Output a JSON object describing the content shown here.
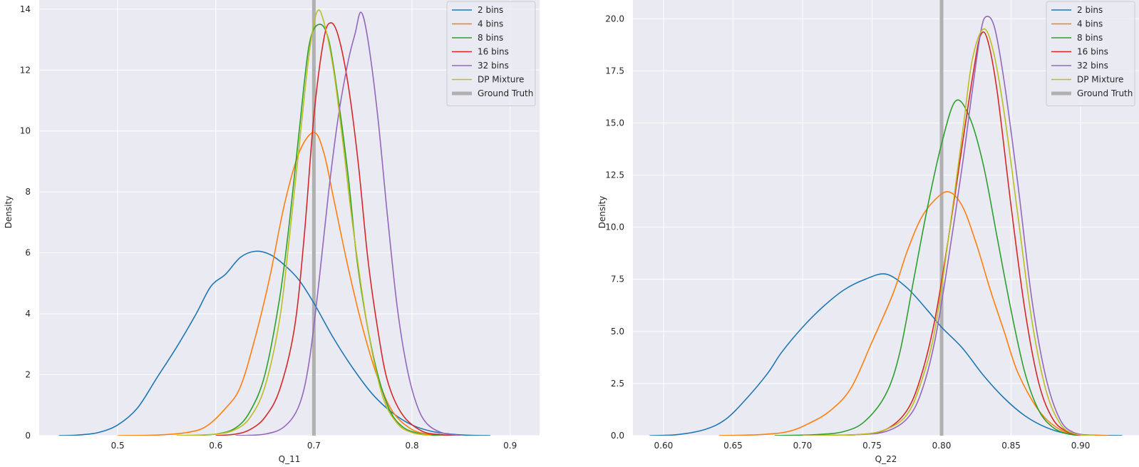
{
  "colors": {
    "plot_background": "#eaeaf2",
    "grid": "#ffffff",
    "text": "#262626",
    "ground_truth": "#b0b0b0"
  },
  "chart_data": [
    {
      "type": "line",
      "xlabel": "Q_11",
      "ylabel": "Density",
      "xlim": [
        0.42,
        0.93
      ],
      "ylim": [
        0,
        14.3
      ],
      "xticks": [
        0.5,
        0.6,
        0.7,
        0.8,
        0.9
      ],
      "xtick_labels": [
        "0.5",
        "0.6",
        "0.7",
        "0.8",
        "0.9"
      ],
      "yticks": [
        0,
        2,
        4,
        6,
        8,
        10,
        12,
        14
      ],
      "ytick_labels": [
        "0",
        "2",
        "4",
        "6",
        "8",
        "10",
        "12",
        "14"
      ],
      "grid": true,
      "legend_position": "top-right",
      "ground_truth": {
        "name": "Ground Truth",
        "x": 0.7,
        "color": "#b0b0b0"
      },
      "series": [
        {
          "name": "2 bins",
          "color": "#1f77b4",
          "points": [
            [
              0.44,
              0
            ],
            [
              0.46,
              0.02
            ],
            [
              0.48,
              0.1
            ],
            [
              0.5,
              0.35
            ],
            [
              0.52,
              0.9
            ],
            [
              0.54,
              1.9
            ],
            [
              0.56,
              2.9
            ],
            [
              0.58,
              4.0
            ],
            [
              0.595,
              4.9
            ],
            [
              0.61,
              5.3
            ],
            [
              0.625,
              5.85
            ],
            [
              0.64,
              6.05
            ],
            [
              0.655,
              5.95
            ],
            [
              0.67,
              5.6
            ],
            [
              0.685,
              5.1
            ],
            [
              0.7,
              4.35
            ],
            [
              0.72,
              3.2
            ],
            [
              0.74,
              2.2
            ],
            [
              0.76,
              1.35
            ],
            [
              0.78,
              0.75
            ],
            [
              0.8,
              0.35
            ],
            [
              0.82,
              0.14
            ],
            [
              0.84,
              0.05
            ],
            [
              0.86,
              0.01
            ],
            [
              0.88,
              0
            ]
          ]
        },
        {
          "name": "4 bins",
          "color": "#ff7f0e",
          "points": [
            [
              0.5,
              0
            ],
            [
              0.54,
              0.02
            ],
            [
              0.57,
              0.1
            ],
            [
              0.59,
              0.3
            ],
            [
              0.61,
              0.9
            ],
            [
              0.625,
              1.6
            ],
            [
              0.64,
              3.2
            ],
            [
              0.655,
              5.2
            ],
            [
              0.67,
              7.6
            ],
            [
              0.685,
              9.3
            ],
            [
              0.7,
              9.95
            ],
            [
              0.71,
              9.3
            ],
            [
              0.72,
              7.8
            ],
            [
              0.735,
              5.5
            ],
            [
              0.75,
              3.5
            ],
            [
              0.765,
              1.9
            ],
            [
              0.78,
              0.8
            ],
            [
              0.8,
              0.2
            ],
            [
              0.82,
              0.04
            ],
            [
              0.84,
              0
            ]
          ]
        },
        {
          "name": "8 bins",
          "color": "#2ca02c",
          "points": [
            [
              0.57,
              0
            ],
            [
              0.6,
              0.05
            ],
            [
              0.62,
              0.25
            ],
            [
              0.635,
              0.8
            ],
            [
              0.65,
              2.0
            ],
            [
              0.665,
              4.5
            ],
            [
              0.675,
              7.0
            ],
            [
              0.685,
              10.0
            ],
            [
              0.695,
              12.8
            ],
            [
              0.705,
              13.5
            ],
            [
              0.715,
              13.0
            ],
            [
              0.725,
              11.0
            ],
            [
              0.735,
              8.5
            ],
            [
              0.745,
              5.5
            ],
            [
              0.76,
              2.7
            ],
            [
              0.775,
              1.0
            ],
            [
              0.79,
              0.3
            ],
            [
              0.81,
              0.05
            ],
            [
              0.83,
              0
            ]
          ]
        },
        {
          "name": "16 bins",
          "color": "#d62728",
          "points": [
            [
              0.6,
              0
            ],
            [
              0.62,
              0.05
            ],
            [
              0.635,
              0.2
            ],
            [
              0.65,
              0.6
            ],
            [
              0.665,
              1.5
            ],
            [
              0.68,
              3.5
            ],
            [
              0.69,
              6.5
            ],
            [
              0.7,
              10.5
            ],
            [
              0.71,
              13.0
            ],
            [
              0.717,
              13.55
            ],
            [
              0.725,
              13.1
            ],
            [
              0.735,
              11.5
            ],
            [
              0.745,
              9.0
            ],
            [
              0.755,
              5.8
            ],
            [
              0.765,
              3.5
            ],
            [
              0.775,
              1.8
            ],
            [
              0.79,
              0.7
            ],
            [
              0.81,
              0.15
            ],
            [
              0.83,
              0.03
            ],
            [
              0.85,
              0
            ]
          ]
        },
        {
          "name": "32 bins",
          "color": "#9467bd",
          "points": [
            [
              0.62,
              0
            ],
            [
              0.65,
              0.05
            ],
            [
              0.67,
              0.3
            ],
            [
              0.685,
              1.0
            ],
            [
              0.695,
              2.4
            ],
            [
              0.705,
              5.0
            ],
            [
              0.715,
              8.0
            ],
            [
              0.725,
              10.5
            ],
            [
              0.735,
              12.3
            ],
            [
              0.742,
              13.2
            ],
            [
              0.748,
              13.9
            ],
            [
              0.755,
              13.0
            ],
            [
              0.765,
              10.5
            ],
            [
              0.775,
              7.2
            ],
            [
              0.785,
              4.2
            ],
            [
              0.795,
              2.2
            ],
            [
              0.805,
              1.0
            ],
            [
              0.815,
              0.4
            ],
            [
              0.83,
              0.1
            ],
            [
              0.85,
              0
            ]
          ]
        },
        {
          "name": "DP Mixture",
          "color": "#bcbd22",
          "points": [
            [
              0.56,
              0
            ],
            [
              0.6,
              0.05
            ],
            [
              0.62,
              0.2
            ],
            [
              0.635,
              0.6
            ],
            [
              0.65,
              1.6
            ],
            [
              0.665,
              3.8
            ],
            [
              0.675,
              6.5
            ],
            [
              0.685,
              9.5
            ],
            [
              0.695,
              12.5
            ],
            [
              0.703,
              13.9
            ],
            [
              0.71,
              13.6
            ],
            [
              0.72,
              12.0
            ],
            [
              0.73,
              9.5
            ],
            [
              0.74,
              6.8
            ],
            [
              0.755,
              3.5
            ],
            [
              0.77,
              1.3
            ],
            [
              0.785,
              0.4
            ],
            [
              0.8,
              0.1
            ],
            [
              0.82,
              0
            ]
          ]
        }
      ]
    },
    {
      "type": "line",
      "xlabel": "Q_22",
      "ylabel": "Density",
      "xlim": [
        0.578,
        0.942
      ],
      "ylim": [
        0,
        20.9
      ],
      "xticks": [
        0.6,
        0.65,
        0.7,
        0.75,
        0.8,
        0.85,
        0.9
      ],
      "xtick_labels": [
        "0.60",
        "0.65",
        "0.70",
        "0.75",
        "0.80",
        "0.85",
        "0.90"
      ],
      "yticks": [
        0,
        2.5,
        5,
        7.5,
        10,
        12.5,
        15,
        17.5,
        20
      ],
      "ytick_labels": [
        "0.0",
        "2.5",
        "5.0",
        "7.5",
        "10.0",
        "12.5",
        "15.0",
        "17.5",
        "20.0"
      ],
      "grid": true,
      "legend_position": "top-right",
      "ground_truth": {
        "name": "Ground Truth",
        "x": 0.8,
        "color": "#b0b0b0"
      },
      "series": [
        {
          "name": "2 bins",
          "color": "#1f77b4",
          "points": [
            [
              0.59,
              0
            ],
            [
              0.61,
              0.05
            ],
            [
              0.63,
              0.3
            ],
            [
              0.645,
              0.8
            ],
            [
              0.66,
              1.8
            ],
            [
              0.675,
              3.0
            ],
            [
              0.685,
              4.0
            ],
            [
              0.7,
              5.2
            ],
            [
              0.715,
              6.2
            ],
            [
              0.73,
              7.0
            ],
            [
              0.745,
              7.5
            ],
            [
              0.76,
              7.75
            ],
            [
              0.775,
              7.1
            ],
            [
              0.79,
              6.0
            ],
            [
              0.8,
              5.2
            ],
            [
              0.815,
              4.2
            ],
            [
              0.83,
              2.9
            ],
            [
              0.845,
              1.8
            ],
            [
              0.86,
              0.95
            ],
            [
              0.875,
              0.4
            ],
            [
              0.89,
              0.1
            ],
            [
              0.91,
              0.02
            ],
            [
              0.93,
              0
            ]
          ]
        },
        {
          "name": "4 bins",
          "color": "#ff7f0e",
          "points": [
            [
              0.64,
              0
            ],
            [
              0.67,
              0.05
            ],
            [
              0.69,
              0.2
            ],
            [
              0.705,
              0.6
            ],
            [
              0.72,
              1.2
            ],
            [
              0.735,
              2.3
            ],
            [
              0.75,
              4.5
            ],
            [
              0.765,
              6.8
            ],
            [
              0.775,
              8.8
            ],
            [
              0.785,
              10.4
            ],
            [
              0.795,
              11.3
            ],
            [
              0.805,
              11.7
            ],
            [
              0.815,
              11.0
            ],
            [
              0.825,
              9.2
            ],
            [
              0.835,
              7.0
            ],
            [
              0.845,
              5.0
            ],
            [
              0.855,
              3.0
            ],
            [
              0.87,
              1.2
            ],
            [
              0.885,
              0.3
            ],
            [
              0.9,
              0.05
            ],
            [
              0.92,
              0
            ]
          ]
        },
        {
          "name": "8 bins",
          "color": "#2ca02c",
          "points": [
            [
              0.68,
              0
            ],
            [
              0.71,
              0.05
            ],
            [
              0.73,
              0.2
            ],
            [
              0.745,
              0.7
            ],
            [
              0.76,
              2.0
            ],
            [
              0.77,
              4.0
            ],
            [
              0.78,
              7.5
            ],
            [
              0.79,
              11.0
            ],
            [
              0.8,
              14.0
            ],
            [
              0.81,
              16.05
            ],
            [
              0.82,
              15.3
            ],
            [
              0.83,
              13.0
            ],
            [
              0.84,
              9.5
            ],
            [
              0.85,
              6.0
            ],
            [
              0.86,
              3.0
            ],
            [
              0.87,
              1.2
            ],
            [
              0.88,
              0.4
            ],
            [
              0.89,
              0.1
            ],
            [
              0.9,
              0
            ]
          ]
        },
        {
          "name": "16 bins",
          "color": "#d62728",
          "points": [
            [
              0.7,
              0
            ],
            [
              0.74,
              0.05
            ],
            [
              0.76,
              0.3
            ],
            [
              0.775,
              1.2
            ],
            [
              0.785,
              2.8
            ],
            [
              0.795,
              5.5
            ],
            [
              0.805,
              9.5
            ],
            [
              0.815,
              14.0
            ],
            [
              0.823,
              17.5
            ],
            [
              0.828,
              19.2
            ],
            [
              0.833,
              19.0
            ],
            [
              0.84,
              16.5
            ],
            [
              0.85,
              11.0
            ],
            [
              0.86,
              6.0
            ],
            [
              0.87,
              2.5
            ],
            [
              0.88,
              0.8
            ],
            [
              0.89,
              0.2
            ],
            [
              0.9,
              0
            ]
          ]
        },
        {
          "name": "32 bins",
          "color": "#9467bd",
          "points": [
            [
              0.7,
              0
            ],
            [
              0.74,
              0.05
            ],
            [
              0.76,
              0.2
            ],
            [
              0.775,
              0.8
            ],
            [
              0.785,
              2.0
            ],
            [
              0.795,
              4.5
            ],
            [
              0.805,
              8.5
            ],
            [
              0.815,
              13.0
            ],
            [
              0.822,
              16.5
            ],
            [
              0.828,
              19.3
            ],
            [
              0.832,
              20.1
            ],
            [
              0.838,
              19.6
            ],
            [
              0.845,
              17.0
            ],
            [
              0.855,
              12.0
            ],
            [
              0.865,
              6.5
            ],
            [
              0.875,
              2.8
            ],
            [
              0.885,
              0.8
            ],
            [
              0.895,
              0.15
            ],
            [
              0.91,
              0
            ]
          ]
        },
        {
          "name": "DP Mixture",
          "color": "#bcbd22",
          "points": [
            [
              0.7,
              0
            ],
            [
              0.74,
              0.05
            ],
            [
              0.76,
              0.3
            ],
            [
              0.775,
              1.0
            ],
            [
              0.785,
              2.5
            ],
            [
              0.795,
              5.0
            ],
            [
              0.805,
              9.5
            ],
            [
              0.815,
              14.5
            ],
            [
              0.822,
              18.0
            ],
            [
              0.83,
              19.5
            ],
            [
              0.837,
              18.5
            ],
            [
              0.845,
              15.5
            ],
            [
              0.855,
              10.5
            ],
            [
              0.865,
              5.5
            ],
            [
              0.875,
              2.2
            ],
            [
              0.885,
              0.6
            ],
            [
              0.895,
              0.1
            ],
            [
              0.91,
              0
            ]
          ]
        }
      ]
    }
  ]
}
